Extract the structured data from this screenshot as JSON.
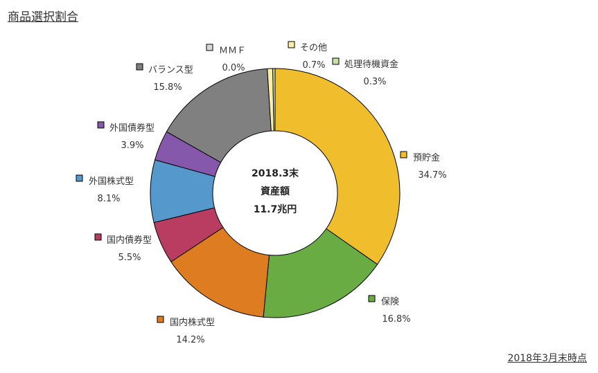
{
  "page": {
    "title": "商品選択割合",
    "footnote": "2018年3月末時点"
  },
  "chart_data": {
    "type": "pie",
    "title": "商品選択割合",
    "center_label": [
      "2018.3末",
      "資産額",
      "11.7兆円"
    ],
    "legend_placement": "around",
    "categories": [
      "預貯金",
      "保険",
      "国内株式型",
      "国内債券型",
      "外国株式型",
      "外国債券型",
      "バランス型",
      "ＭＭＦ",
      "その他",
      "処理待機資金"
    ],
    "values": [
      34.7,
      16.8,
      14.2,
      5.5,
      8.1,
      3.9,
      15.8,
      0.0,
      0.7,
      0.3
    ],
    "value_labels": [
      "34.7%",
      "16.8%",
      "14.2%",
      "5.5%",
      "8.1%",
      "3.9%",
      "15.8%",
      "0.0%",
      "0.7%",
      "0.3%"
    ],
    "colors": [
      "#F0BE2D",
      "#69AC43",
      "#DE7C22",
      "#B83D61",
      "#5598CC",
      "#8558AB",
      "#808080",
      "#D9D9D9",
      "#FCEEA6",
      "#C7E2A7"
    ]
  }
}
